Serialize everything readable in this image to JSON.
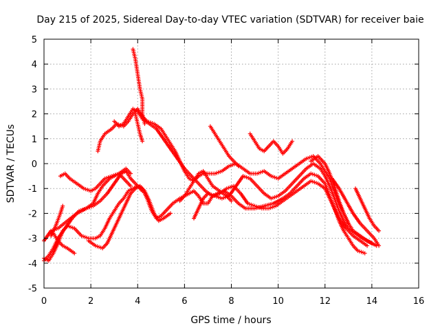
{
  "chart_data": {
    "type": "scatter",
    "title": "Day 215 of 2025, Sidereal Day-to-day VTEC variation (SDTVAR) for receiver baie",
    "xlabel": "GPS time / hours",
    "ylabel": "SDTVAR / TECUs",
    "xlim": [
      0,
      16
    ],
    "ylim": [
      -5,
      5
    ],
    "xticks": [
      "0",
      "2",
      "4",
      "6",
      "8",
      "10",
      "12",
      "14",
      "16"
    ],
    "yticks": [
      "-5",
      "-4",
      "-3",
      "-2",
      "-1",
      "0",
      "1",
      "2",
      "3",
      "4",
      "5"
    ],
    "grid": true,
    "marker": "+",
    "color": "#ff0000",
    "series": [
      {
        "points": [
          [
            0.0,
            -3.8
          ],
          [
            0.2,
            -3.9
          ],
          [
            0.4,
            -3.6
          ],
          [
            0.6,
            -3.2
          ],
          [
            0.8,
            -2.7
          ],
          [
            1.0,
            -2.5
          ],
          [
            1.3,
            -2.6
          ],
          [
            1.6,
            -2.9
          ],
          [
            1.9,
            -3.0
          ],
          [
            2.2,
            -3.0
          ],
          [
            2.4,
            -2.9
          ],
          [
            2.6,
            -2.6
          ],
          [
            2.8,
            -2.2
          ],
          [
            3.0,
            -1.9
          ],
          [
            3.2,
            -1.6
          ],
          [
            3.4,
            -1.4
          ],
          [
            3.6,
            -1.1
          ],
          [
            3.8,
            -1.0
          ],
          [
            4.0,
            -0.9
          ],
          [
            4.2,
            -1.0
          ],
          [
            4.4,
            -1.4
          ],
          [
            4.6,
            -1.9
          ],
          [
            4.8,
            -2.2
          ],
          [
            5.0,
            -2.1
          ],
          [
            5.2,
            -1.9
          ],
          [
            5.5,
            -1.6
          ],
          [
            5.8,
            -1.4
          ],
          [
            6.0,
            -1.3
          ],
          [
            6.2,
            -1.2
          ],
          [
            6.4,
            -1.1
          ],
          [
            6.6,
            -1.3
          ],
          [
            6.8,
            -1.6
          ],
          [
            7.0,
            -1.6
          ],
          [
            7.2,
            -1.3
          ],
          [
            7.4,
            -1.2
          ],
          [
            7.7,
            -1.1
          ],
          [
            8.0,
            -1.3
          ],
          [
            8.3,
            -1.6
          ],
          [
            8.6,
            -1.8
          ],
          [
            9.0,
            -1.8
          ],
          [
            9.4,
            -1.7
          ],
          [
            9.8,
            -1.6
          ],
          [
            10.2,
            -1.4
          ],
          [
            10.5,
            -1.2
          ],
          [
            10.8,
            -0.9
          ],
          [
            11.1,
            -0.6
          ],
          [
            11.4,
            -0.4
          ],
          [
            11.7,
            -0.5
          ],
          [
            12.0,
            -0.8
          ],
          [
            12.2,
            -1.3
          ],
          [
            12.4,
            -1.8
          ],
          [
            12.6,
            -2.3
          ],
          [
            12.8,
            -2.7
          ],
          [
            13.0,
            -3.0
          ],
          [
            13.2,
            -3.3
          ],
          [
            13.4,
            -3.5
          ],
          [
            13.7,
            -3.6
          ]
        ]
      },
      {
        "points": [
          [
            0.0,
            -3.1
          ],
          [
            0.3,
            -2.7
          ],
          [
            0.6,
            -2.6
          ],
          [
            1.0,
            -2.3
          ],
          [
            1.4,
            -2.0
          ],
          [
            1.8,
            -1.8
          ],
          [
            2.1,
            -1.7
          ],
          [
            2.4,
            -1.5
          ],
          [
            2.7,
            -1.2
          ],
          [
            3.0,
            -0.8
          ],
          [
            3.3,
            -0.4
          ],
          [
            3.5,
            -0.3
          ],
          [
            3.7,
            -0.6
          ],
          [
            4.0,
            -0.9
          ],
          [
            4.2,
            -1.1
          ]
        ]
      },
      {
        "points": [
          [
            0.0,
            -3.9
          ],
          [
            0.2,
            -3.7
          ],
          [
            0.4,
            -3.4
          ],
          [
            0.6,
            -3.0
          ],
          [
            0.9,
            -2.6
          ],
          [
            1.2,
            -2.2
          ],
          [
            1.5,
            -1.9
          ],
          [
            1.8,
            -1.8
          ],
          [
            2.1,
            -1.6
          ],
          [
            2.3,
            -1.2
          ],
          [
            2.5,
            -0.9
          ],
          [
            2.8,
            -0.6
          ],
          [
            3.0,
            -0.5
          ],
          [
            3.2,
            -0.4
          ],
          [
            3.5,
            -0.2
          ],
          [
            3.7,
            -0.4
          ]
        ]
      },
      {
        "points": [
          [
            0.3,
            -2.9
          ],
          [
            0.5,
            -2.5
          ],
          [
            0.7,
            -2.0
          ],
          [
            0.8,
            -1.7
          ]
        ]
      },
      {
        "points": [
          [
            0.4,
            -2.8
          ],
          [
            0.6,
            -3.1
          ],
          [
            0.8,
            -3.3
          ],
          [
            1.0,
            -3.4
          ],
          [
            1.3,
            -3.6
          ]
        ]
      },
      {
        "points": [
          [
            0.7,
            -0.5
          ],
          [
            0.9,
            -0.4
          ],
          [
            1.1,
            -0.6
          ],
          [
            1.4,
            -0.8
          ],
          [
            1.7,
            -1.0
          ],
          [
            2.0,
            -1.1
          ],
          [
            2.2,
            -1.0
          ],
          [
            2.4,
            -0.8
          ],
          [
            2.6,
            -0.6
          ],
          [
            2.9,
            -0.5
          ],
          [
            3.2,
            -0.4
          ],
          [
            3.4,
            -0.6
          ],
          [
            3.7,
            -0.9
          ]
        ]
      },
      {
        "points": [
          [
            1.9,
            -3.1
          ],
          [
            2.2,
            -3.3
          ],
          [
            2.5,
            -3.4
          ],
          [
            2.7,
            -3.2
          ],
          [
            2.9,
            -2.8
          ],
          [
            3.1,
            -2.4
          ],
          [
            3.3,
            -2.0
          ],
          [
            3.5,
            -1.6
          ],
          [
            3.7,
            -1.2
          ],
          [
            3.9,
            -1.0
          ],
          [
            4.1,
            -0.9
          ],
          [
            4.3,
            -1.1
          ],
          [
            4.5,
            -1.5
          ],
          [
            4.7,
            -2.0
          ],
          [
            4.9,
            -2.3
          ],
          [
            5.1,
            -2.2
          ],
          [
            5.4,
            -2.0
          ]
        ]
      },
      {
        "points": [
          [
            2.3,
            0.5
          ],
          [
            2.4,
            0.9
          ],
          [
            2.6,
            1.2
          ],
          [
            2.9,
            1.4
          ],
          [
            3.1,
            1.6
          ],
          [
            3.4,
            1.5
          ],
          [
            3.6,
            1.7
          ],
          [
            3.8,
            2.0
          ],
          [
            4.0,
            2.2
          ],
          [
            4.2,
            1.9
          ],
          [
            4.4,
            1.7
          ],
          [
            4.7,
            1.6
          ],
          [
            5.0,
            1.4
          ],
          [
            5.2,
            1.1
          ],
          [
            5.4,
            0.8
          ],
          [
            5.6,
            0.5
          ],
          [
            5.8,
            0.1
          ],
          [
            6.0,
            -0.3
          ],
          [
            6.2,
            -0.6
          ],
          [
            6.4,
            -0.7
          ],
          [
            6.6,
            -0.5
          ],
          [
            6.8,
            -0.4
          ],
          [
            7.0,
            -0.4
          ],
          [
            7.3,
            -0.4
          ],
          [
            7.6,
            -0.3
          ],
          [
            7.9,
            -0.1
          ],
          [
            8.2,
            0.0
          ],
          [
            8.5,
            -0.2
          ],
          [
            8.8,
            -0.4
          ],
          [
            9.1,
            -0.4
          ],
          [
            9.4,
            -0.3
          ],
          [
            9.7,
            -0.5
          ],
          [
            10.0,
            -0.6
          ],
          [
            10.3,
            -0.4
          ],
          [
            10.6,
            -0.2
          ],
          [
            10.9,
            0.0
          ],
          [
            11.2,
            0.2
          ],
          [
            11.5,
            0.3
          ],
          [
            11.8,
            0.0
          ],
          [
            12.0,
            -0.3
          ],
          [
            12.2,
            -0.6
          ],
          [
            12.4,
            -1.1
          ],
          [
            12.6,
            -1.6
          ],
          [
            12.8,
            -2.0
          ],
          [
            13.0,
            -2.4
          ],
          [
            13.2,
            -2.7
          ],
          [
            13.5,
            -2.9
          ],
          [
            13.8,
            -3.1
          ],
          [
            14.2,
            -3.3
          ]
        ]
      },
      {
        "points": [
          [
            3.0,
            1.7
          ],
          [
            3.2,
            1.5
          ],
          [
            3.4,
            1.6
          ],
          [
            3.6,
            1.9
          ],
          [
            3.8,
            2.2
          ],
          [
            4.0,
            2.1
          ],
          [
            4.2,
            1.8
          ],
          [
            4.5,
            1.6
          ],
          [
            4.8,
            1.4
          ],
          [
            5.1,
            1.0
          ],
          [
            5.4,
            0.6
          ],
          [
            5.7,
            0.2
          ],
          [
            6.0,
            -0.2
          ],
          [
            6.3,
            -0.5
          ],
          [
            6.6,
            -0.8
          ],
          [
            6.9,
            -1.1
          ],
          [
            7.2,
            -1.3
          ],
          [
            7.5,
            -1.2
          ],
          [
            7.8,
            -1.0
          ],
          [
            8.1,
            -0.9
          ],
          [
            8.4,
            -1.2
          ],
          [
            8.7,
            -1.6
          ],
          [
            9.0,
            -1.7
          ],
          [
            9.3,
            -1.8
          ],
          [
            9.6,
            -1.8
          ],
          [
            9.9,
            -1.7
          ],
          [
            10.2,
            -1.5
          ],
          [
            10.5,
            -1.3
          ],
          [
            10.8,
            -1.1
          ],
          [
            11.1,
            -0.9
          ],
          [
            11.4,
            -0.7
          ],
          [
            11.7,
            -0.8
          ],
          [
            12.0,
            -1.0
          ],
          [
            12.3,
            -1.6
          ],
          [
            12.6,
            -2.2
          ],
          [
            12.9,
            -2.6
          ],
          [
            13.2,
            -2.9
          ],
          [
            13.5,
            -3.1
          ],
          [
            13.8,
            -3.3
          ]
        ]
      },
      {
        "points": [
          [
            3.8,
            4.6
          ],
          [
            3.9,
            4.2
          ],
          [
            4.0,
            3.6
          ],
          [
            4.1,
            3.0
          ],
          [
            4.2,
            2.6
          ],
          [
            4.2,
            2.0
          ],
          [
            4.3,
            1.6
          ]
        ]
      },
      {
        "points": [
          [
            3.9,
            2.0
          ],
          [
            4.0,
            1.6
          ],
          [
            4.1,
            1.2
          ],
          [
            4.2,
            0.9
          ]
        ]
      },
      {
        "points": [
          [
            5.8,
            -1.5
          ],
          [
            6.0,
            -1.3
          ],
          [
            6.2,
            -1.0
          ],
          [
            6.4,
            -0.7
          ],
          [
            6.6,
            -0.4
          ],
          [
            6.8,
            -0.3
          ],
          [
            7.0,
            -0.6
          ],
          [
            7.2,
            -0.9
          ],
          [
            7.5,
            -1.1
          ],
          [
            7.8,
            -1.3
          ],
          [
            8.0,
            -1.5
          ]
        ]
      },
      {
        "points": [
          [
            6.4,
            -2.2
          ],
          [
            6.6,
            -1.8
          ],
          [
            6.8,
            -1.4
          ],
          [
            7.0,
            -1.2
          ],
          [
            7.3,
            -1.3
          ],
          [
            7.6,
            -1.4
          ],
          [
            7.9,
            -1.3
          ],
          [
            8.2,
            -0.9
          ],
          [
            8.5,
            -0.5
          ],
          [
            8.8,
            -0.6
          ],
          [
            9.1,
            -0.9
          ],
          [
            9.4,
            -1.2
          ],
          [
            9.7,
            -1.4
          ],
          [
            10.0,
            -1.3
          ],
          [
            10.3,
            -1.1
          ],
          [
            10.6,
            -0.8
          ],
          [
            10.9,
            -0.5
          ],
          [
            11.2,
            -0.2
          ],
          [
            11.5,
            0.0
          ],
          [
            11.8,
            -0.2
          ],
          [
            12.0,
            -0.5
          ],
          [
            12.2,
            -0.9
          ],
          [
            12.4,
            -1.4
          ],
          [
            12.6,
            -1.9
          ],
          [
            12.8,
            -2.3
          ],
          [
            13.0,
            -2.6
          ],
          [
            13.3,
            -2.8
          ],
          [
            13.6,
            -3.0
          ],
          [
            14.0,
            -3.2
          ]
        ]
      },
      {
        "points": [
          [
            7.1,
            1.5
          ],
          [
            7.3,
            1.2
          ],
          [
            7.5,
            0.9
          ],
          [
            7.7,
            0.6
          ],
          [
            7.9,
            0.3
          ],
          [
            8.1,
            0.1
          ],
          [
            8.3,
            -0.1
          ]
        ]
      },
      {
        "points": [
          [
            8.8,
            1.2
          ],
          [
            9.0,
            0.9
          ],
          [
            9.2,
            0.6
          ],
          [
            9.4,
            0.5
          ],
          [
            9.6,
            0.7
          ],
          [
            9.8,
            0.9
          ],
          [
            10.0,
            0.7
          ],
          [
            10.2,
            0.4
          ],
          [
            10.4,
            0.6
          ],
          [
            10.6,
            0.9
          ]
        ]
      },
      {
        "points": [
          [
            11.4,
            0.1
          ],
          [
            11.7,
            0.3
          ],
          [
            12.0,
            0.0
          ],
          [
            12.2,
            -0.4
          ],
          [
            12.4,
            -0.9
          ],
          [
            12.6,
            -1.5
          ],
          [
            12.8,
            -2.0
          ],
          [
            13.0,
            -2.4
          ]
        ]
      },
      {
        "points": [
          [
            13.3,
            -1.0
          ],
          [
            13.5,
            -1.4
          ],
          [
            13.7,
            -1.8
          ],
          [
            13.9,
            -2.2
          ],
          [
            14.1,
            -2.5
          ],
          [
            14.3,
            -2.7
          ]
        ]
      },
      {
        "points": [
          [
            12.3,
            -0.6
          ],
          [
            12.6,
            -1.0
          ],
          [
            12.9,
            -1.5
          ],
          [
            13.2,
            -2.0
          ],
          [
            13.5,
            -2.4
          ],
          [
            13.8,
            -2.7
          ],
          [
            14.1,
            -3.0
          ],
          [
            14.3,
            -3.3
          ]
        ]
      }
    ]
  }
}
